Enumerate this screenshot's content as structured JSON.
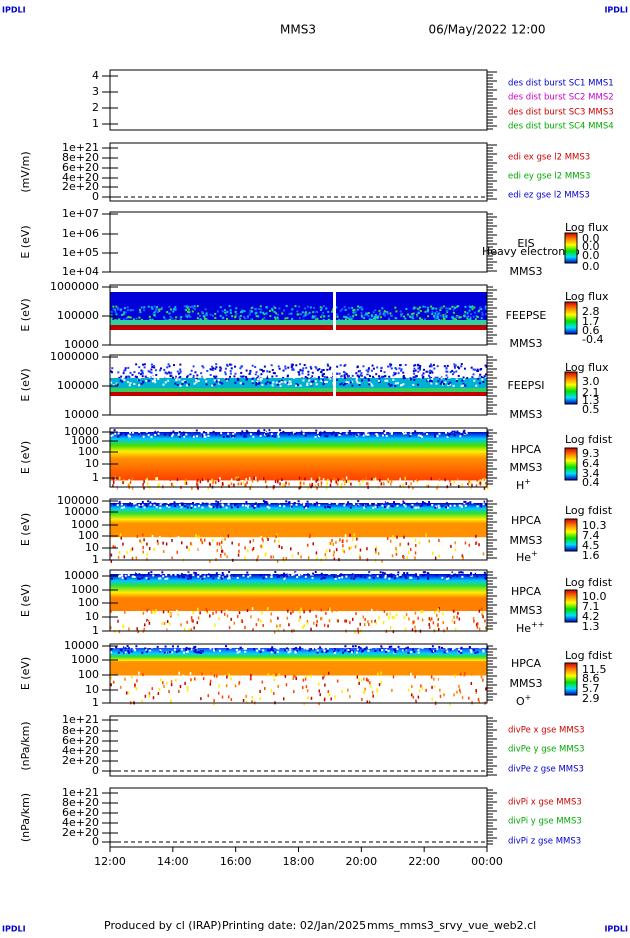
{
  "header": {
    "corner_tags": [
      "IPDLI",
      "IPDLI",
      "IPDLI",
      "IPDLI"
    ],
    "mission": "MMS3",
    "date": "06/May/2022 12:00"
  },
  "panels": [
    {
      "y_ticks": [
        "4",
        "3",
        "2",
        "1"
      ],
      "legend": [
        "des dist burst SC1 MMS1",
        "des dist burst SC2 MMS2",
        "des dist burst SC3 MMS3",
        "des dist burst SC4 MMS4"
      ]
    },
    {
      "y_label": "(mV/m)",
      "y_ticks": [
        "1e+21",
        "8e+20",
        "6e+20",
        "4e+20",
        "2e+20",
        "0"
      ],
      "legend": [
        "edi ex gse l2 MMS3",
        "edi ey gse l2 MMS3",
        "edi ez gse l2 MMS3"
      ]
    },
    {
      "y_label": "E (eV)",
      "y_ticks": [
        "1e+07",
        "1e+06",
        "1e+05",
        "1e+04"
      ],
      "instrument": "EIS",
      "spacecraft": "MMS3",
      "overlay_text": "Heavy electron to",
      "colorbar_title": "Log flux",
      "colorbar_ticks": [
        "0.0",
        "0.0",
        "0.0",
        "0.0"
      ]
    },
    {
      "y_label": "E (eV)",
      "y_ticks": [
        "1000000",
        "100000",
        "10000"
      ],
      "instrument": "FEEPSE",
      "spacecraft": "MMS3",
      "colorbar_title": "Log flux",
      "colorbar_ticks": [
        "2.8",
        "1.7",
        "0.6",
        "-0.4"
      ]
    },
    {
      "y_label": "E (eV)",
      "y_ticks": [
        "1000000",
        "100000",
        "10000"
      ],
      "instrument": "FEEPSI",
      "spacecraft": "MMS3",
      "colorbar_title": "Log flux",
      "colorbar_ticks": [
        "3.0",
        "2.1",
        "1.3",
        "0.5"
      ]
    },
    {
      "y_label": "E (eV)",
      "y_ticks": [
        "10000",
        "1000",
        "100",
        "10",
        "1"
      ],
      "instrument": "HPCA",
      "spacecraft": "MMS3",
      "species": "H",
      "charge": "+",
      "colorbar_title": "Log fdist",
      "colorbar_ticks": [
        "9.3",
        "6.4",
        "3.4",
        "0.4"
      ]
    },
    {
      "y_label": "E (eV)",
      "y_ticks": [
        "100000",
        "10000",
        "1000",
        "100",
        "10",
        "1"
      ],
      "instrument": "HPCA",
      "spacecraft": "MMS3",
      "species": "He",
      "charge": "+",
      "colorbar_title": "Log fdist",
      "colorbar_ticks": [
        "10.3",
        "7.4",
        "4.5",
        "1.6"
      ]
    },
    {
      "y_label": "E (eV)",
      "y_ticks": [
        "10000",
        "1000",
        "100",
        "10",
        "1"
      ],
      "instrument": "HPCA",
      "spacecraft": "MMS3",
      "species": "He",
      "charge": "++",
      "colorbar_title": "Log fdist",
      "colorbar_ticks": [
        "10.0",
        "7.1",
        "4.2",
        "1.3"
      ]
    },
    {
      "y_label": "E (eV)",
      "y_ticks": [
        "10000",
        "1000",
        "100",
        "10",
        "1"
      ],
      "instrument": "HPCA",
      "spacecraft": "MMS3",
      "species": "O",
      "charge": "+",
      "colorbar_title": "Log fdist",
      "colorbar_ticks": [
        "11.5",
        "8.6",
        "5.7",
        "2.9"
      ]
    },
    {
      "y_label": "(nPa/km)",
      "y_ticks": [
        "1e+21",
        "8e+20",
        "6e+20",
        "4e+20",
        "2e+20",
        "0"
      ],
      "legend": [
        "divPe x gse MMS3",
        "divPe y gse MMS3",
        "divPe z gse MMS3"
      ]
    },
    {
      "y_label": "(nPa/km)",
      "y_ticks": [
        "1e+21",
        "8e+20",
        "6e+20",
        "4e+20",
        "2e+20",
        "0"
      ],
      "legend": [
        "divPi x gse MMS3",
        "divPi y gse MMS3",
        "divPi z gse MMS3"
      ]
    }
  ],
  "x_ticks": [
    "12:00",
    "14:00",
    "16:00",
    "18:00",
    "20:00",
    "22:00",
    "00:00"
  ],
  "footer": [
    "Produced by cl (IRAP)",
    "Printing date: 02/Jan/2025",
    "mms_mms3_srvy_vue_web2.cl"
  ]
}
